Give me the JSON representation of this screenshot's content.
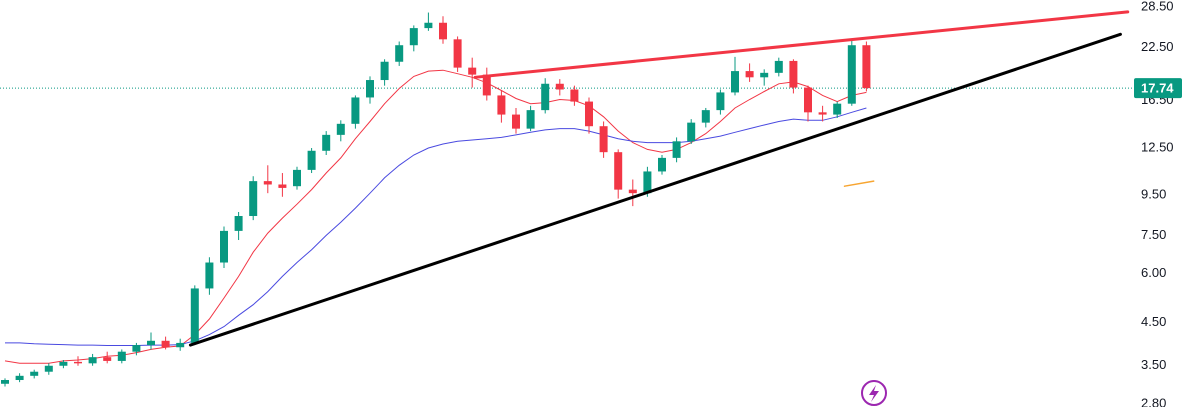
{
  "chart_data": {
    "type": "candlestick",
    "log_scale": true,
    "ylim": [
      2.75,
      29.7
    ],
    "yticks": [
      {
        "value": 28.5,
        "label": "28.50"
      },
      {
        "value": 22.5,
        "label": "22.50"
      },
      {
        "value": 16.5,
        "label": "16.50"
      },
      {
        "value": 12.5,
        "label": "12.50"
      },
      {
        "value": 9.5,
        "label": "9.50"
      },
      {
        "value": 7.5,
        "label": "7.50"
      },
      {
        "value": 6,
        "label": "6.00"
      },
      {
        "value": 4.5,
        "label": "4.50"
      },
      {
        "value": 3.5,
        "label": "3.50"
      },
      {
        "value": 2.8,
        "label": "2.80"
      }
    ],
    "up_color": "#089981",
    "down_color": "#f23645",
    "open": [
      3.15,
      3.22,
      3.3,
      3.38,
      3.5,
      3.58,
      3.55,
      3.68,
      3.6,
      3.8,
      3.95,
      4.05,
      3.9,
      4.0,
      5.5,
      6.4,
      7.7,
      8.4,
      10.3,
      10.1,
      10.0,
      11.0,
      12.3,
      13.5,
      14.4,
      16.8,
      18.6,
      20.7,
      22.8,
      25.2,
      26.0,
      23.6,
      20.0,
      19.2,
      17.0,
      15.2,
      14.0,
      15.6,
      18.2,
      17.6,
      16.4,
      14.2,
      12.2,
      9.8,
      9.6,
      10.9,
      11.8,
      13.0,
      14.5,
      15.6,
      17.3,
      19.6,
      18.9,
      19.4,
      20.8,
      17.8,
      15.4,
      15.2,
      16.2,
      22.8
    ],
    "high": [
      3.25,
      3.35,
      3.42,
      3.55,
      3.62,
      3.7,
      3.75,
      3.8,
      3.85,
      4.0,
      4.25,
      4.15,
      4.1,
      5.6,
      6.6,
      7.9,
      8.6,
      10.6,
      11.3,
      10.8,
      11.2,
      12.5,
      13.8,
      14.7,
      17.0,
      19.0,
      21.0,
      23.3,
      25.6,
      27.6,
      27.0,
      24.0,
      21.2,
      20.0,
      17.5,
      15.8,
      16.0,
      18.8,
      18.7,
      18.0,
      16.8,
      14.6,
      12.4,
      10.4,
      11.2,
      12.0,
      13.3,
      14.8,
      15.8,
      17.6,
      21.3,
      20.5,
      19.8,
      21.2,
      21.0,
      18.0,
      16.0,
      16.4,
      23.5,
      23.3
    ],
    "low": [
      3.1,
      3.18,
      3.25,
      3.32,
      3.45,
      3.5,
      3.5,
      3.55,
      3.55,
      3.72,
      3.85,
      3.85,
      3.82,
      3.95,
      5.3,
      6.2,
      7.3,
      8.2,
      9.6,
      9.4,
      9.8,
      10.8,
      12.0,
      13.0,
      14.0,
      16.2,
      18.0,
      20.2,
      22.0,
      24.8,
      23.0,
      19.5,
      17.8,
      16.5,
      14.5,
      13.6,
      13.8,
      15.3,
      17.0,
      16.0,
      13.6,
      11.8,
      9.3,
      8.9,
      9.4,
      10.7,
      11.5,
      12.8,
      14.1,
      15.2,
      17.0,
      18.4,
      18.0,
      19.0,
      17.2,
      14.6,
      14.6,
      14.9,
      16.0,
      17.4
    ],
    "close": [
      3.22,
      3.3,
      3.38,
      3.5,
      3.58,
      3.55,
      3.68,
      3.6,
      3.8,
      3.95,
      4.05,
      3.9,
      4.0,
      5.5,
      6.4,
      7.7,
      8.4,
      10.3,
      10.1,
      9.9,
      11.0,
      12.3,
      13.5,
      14.4,
      16.8,
      18.6,
      20.7,
      22.8,
      25.2,
      26.0,
      23.6,
      20.0,
      19.2,
      17.0,
      15.2,
      14.0,
      15.6,
      18.2,
      17.6,
      16.4,
      14.2,
      12.2,
      9.8,
      9.6,
      10.9,
      11.8,
      13.0,
      14.5,
      15.6,
      17.3,
      19.6,
      18.9,
      19.4,
      20.8,
      17.8,
      15.4,
      15.2,
      16.2,
      22.8,
      17.74
    ],
    "overlays": [
      {
        "color": "#f23645",
        "values": [
          3.6,
          3.55,
          3.55,
          3.55,
          3.6,
          3.62,
          3.65,
          3.7,
          3.72,
          3.78,
          3.85,
          3.9,
          3.93,
          4.2,
          4.6,
          5.2,
          5.9,
          6.8,
          7.6,
          8.3,
          9.0,
          9.8,
          10.8,
          11.8,
          13.2,
          14.6,
          16.2,
          17.7,
          19.0,
          19.6,
          19.7,
          19.3,
          18.9,
          18.3,
          17.5,
          16.7,
          16.2,
          16.3,
          16.6,
          16.5,
          16.0,
          15.0,
          13.8,
          12.9,
          12.4,
          12.2,
          12.4,
          12.9,
          13.6,
          14.6,
          15.8,
          16.6,
          17.4,
          18.2,
          18.4,
          17.9,
          17.0,
          16.4,
          17.0,
          17.3
        ]
      },
      {
        "color": "#4a4ae0",
        "values": [
          4.0,
          4.0,
          3.98,
          3.97,
          3.96,
          3.95,
          3.95,
          3.94,
          3.94,
          3.94,
          3.95,
          3.95,
          3.96,
          4.05,
          4.2,
          4.4,
          4.7,
          5.0,
          5.4,
          5.9,
          6.4,
          6.9,
          7.5,
          8.1,
          8.8,
          9.6,
          10.5,
          11.3,
          12.0,
          12.5,
          12.8,
          13.0,
          13.1,
          13.2,
          13.3,
          13.5,
          13.7,
          13.9,
          14.0,
          14.0,
          13.8,
          13.5,
          13.2,
          13.0,
          12.9,
          12.9,
          12.9,
          13.0,
          13.2,
          13.4,
          13.7,
          14.0,
          14.3,
          14.6,
          14.8,
          14.7,
          14.7,
          15.0,
          15.4,
          15.8
        ]
      }
    ],
    "trendlines": [
      {
        "color": "#000000",
        "width": 3,
        "points": [
          [
            12.7,
            3.95
          ],
          [
            76.4,
            24.3
          ]
        ]
      },
      {
        "color": "#f23645",
        "width": 3,
        "points": [
          [
            32.2,
            18.9
          ],
          [
            76.9,
            27.7
          ]
        ]
      },
      {
        "color": "#f7a531",
        "width": 1.5,
        "points": [
          [
            57.5,
            10.0
          ],
          [
            59.5,
            10.3
          ]
        ]
      }
    ],
    "last_price": 17.74,
    "last_price_color": "#089981"
  }
}
